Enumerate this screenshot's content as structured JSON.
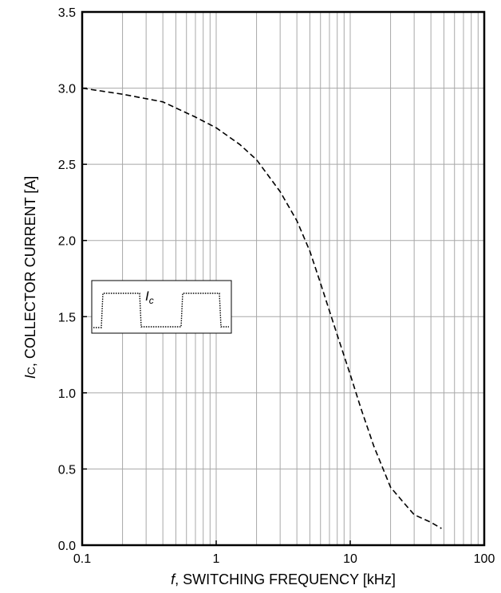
{
  "chart_data": {
    "type": "line",
    "x_scale": "log",
    "grid": true,
    "xlim": [
      0.1,
      100
    ],
    "ylim": [
      0.0,
      3.5
    ],
    "xlabel": {
      "italic": "f",
      "rest": ", SWITCHING FREQUENCY [kHz]"
    },
    "ylabel": {
      "italic": "I",
      "subscript": "C",
      "rest": ", COLLECTOR CURRENT [A]"
    },
    "x_ticks": [
      {
        "value": 0.1,
        "label": "0.1"
      },
      {
        "value": 1,
        "label": "1"
      },
      {
        "value": 10,
        "label": "10"
      },
      {
        "value": 100,
        "label": "100"
      }
    ],
    "y_ticks": [
      {
        "value": 0.0,
        "label": "0.0"
      },
      {
        "value": 0.5,
        "label": "0.5"
      },
      {
        "value": 1.0,
        "label": "1.0"
      },
      {
        "value": 1.5,
        "label": "1.5"
      },
      {
        "value": 2.0,
        "label": "2.0"
      },
      {
        "value": 2.5,
        "label": "2.5"
      },
      {
        "value": 3.0,
        "label": "3.0"
      },
      {
        "value": 3.5,
        "label": "3.5"
      }
    ],
    "series": [
      {
        "line_style": "dashed",
        "x": [
          0.1,
          0.2,
          0.4,
          0.7,
          1.0,
          1.5,
          2.0,
          3.0,
          4.0,
          5.0,
          6.0,
          8.0,
          10.0,
          12.0,
          15.0,
          20.0,
          25.0,
          30.0,
          40.0,
          48.0
        ],
        "y": [
          3.0,
          2.96,
          2.91,
          2.81,
          2.74,
          2.63,
          2.53,
          2.32,
          2.13,
          1.93,
          1.72,
          1.38,
          1.12,
          0.9,
          0.65,
          0.38,
          0.28,
          0.2,
          0.15,
          0.11
        ]
      }
    ],
    "inset": {
      "label": "I",
      "label_subscript": "c",
      "waveform": "pulse train"
    }
  }
}
